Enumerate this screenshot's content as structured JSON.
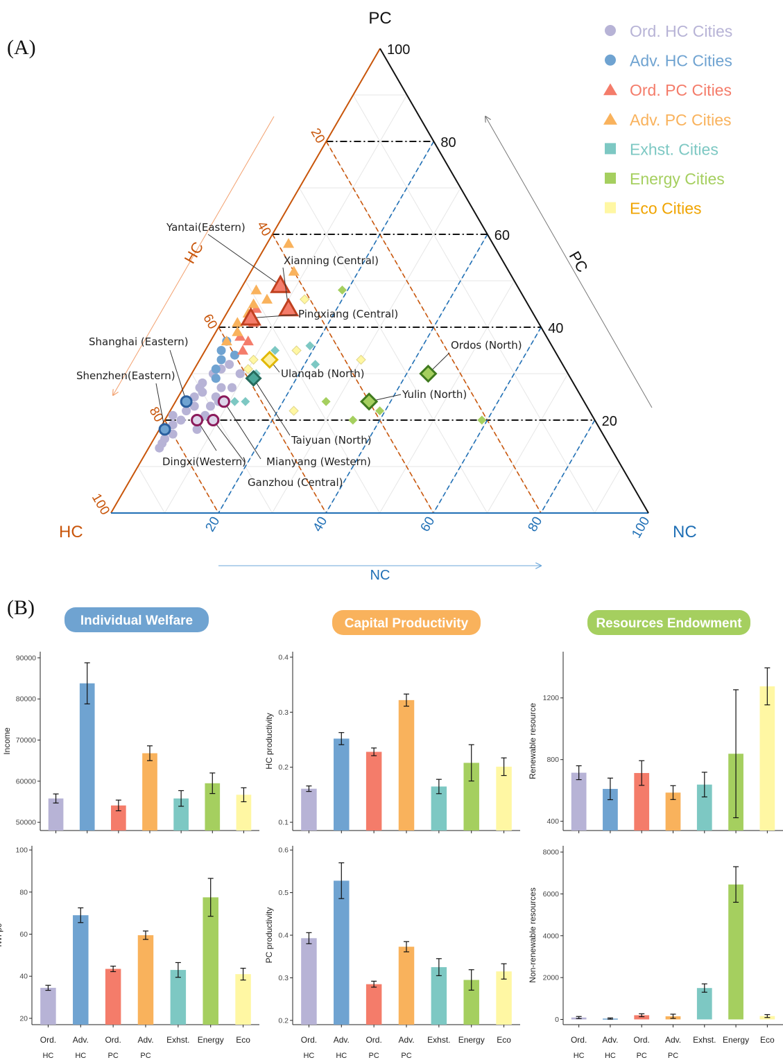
{
  "colors": {
    "ord_hc": "#b7b3d6",
    "adv_hc": "#6fa3d1",
    "ord_pc": "#f47c6a",
    "adv_pc": "#f9b25c",
    "exhst": "#7dc8c3",
    "energy": "#a5cf5f",
    "eco": "#fff7a3",
    "hc_axis": "#c8550a",
    "nc_axis": "#1f6fb5"
  },
  "panel_a": {
    "label": "(A)",
    "vertex_labels": {
      "pc": "PC",
      "hc": "HC",
      "nc": "NC"
    },
    "arrow_labels": {
      "pc": "PC",
      "hc": "HC",
      "nc": "NC"
    },
    "pc_ticks": [
      "20",
      "40",
      "60",
      "80",
      "100"
    ],
    "hc_ticks": [
      "20",
      "40",
      "60",
      "80",
      "100"
    ],
    "nc_ticks": [
      "20",
      "40",
      "60",
      "80",
      "100"
    ],
    "legend": [
      {
        "label": "Ord. HC Cities",
        "shape": "circle",
        "color_key": "ord_hc"
      },
      {
        "label": "Adv. HC Cities",
        "shape": "circle",
        "color_key": "adv_hc"
      },
      {
        "label": "Ord. PC Cities",
        "shape": "triangle",
        "color_key": "ord_pc"
      },
      {
        "label": "Adv. PC Cities",
        "shape": "triangle",
        "color_key": "adv_pc"
      },
      {
        "label": "Exhst. Cities",
        "shape": "square",
        "color_key": "exhst"
      },
      {
        "label": "Energy Cities",
        "shape": "square",
        "color_key": "energy"
      },
      {
        "label": "Eco Cities",
        "shape": "square",
        "color_key": "eco"
      }
    ],
    "annotations": [
      "Yantai(Eastern)",
      "Xianning (Central)",
      "Pingxiang (Central)",
      "Shanghai (Eastern)",
      "Shenzhen(Eastern)",
      "Ordos (North)",
      "Ulanqab (North)",
      "Yulin (North)",
      "Taiyuan (North)",
      "Dingxi(Western)",
      "Mianyang (Western)",
      "Ganzhou (Central)"
    ]
  },
  "panel_b": {
    "label": "(B)",
    "group_titles": [
      "Individual Welfare",
      "Capital Productivity",
      "Resources Endowment"
    ],
    "category_lines": [
      [
        "Ord.",
        "HC"
      ],
      [
        "Adv.",
        "HC"
      ],
      [
        "Ord.",
        "PC"
      ],
      [
        "Adv.",
        "PC"
      ],
      [
        "Exhst.",
        ""
      ],
      [
        "Energy",
        ""
      ],
      [
        "Eco",
        ""
      ]
    ]
  },
  "chart_data": [
    {
      "type": "scatter",
      "subtype": "ternary",
      "axes": [
        "PC",
        "HC",
        "NC"
      ],
      "range": [
        0,
        100
      ],
      "series": [
        {
          "name": "Ord. HC Cities",
          "points": [
            [
              30,
              66,
              4
            ],
            [
              28,
              69,
              3
            ],
            [
              27,
              70,
              3
            ],
            [
              25,
              72,
              3
            ],
            [
              24,
              74,
              2
            ],
            [
              22,
              75,
              3
            ],
            [
              21,
              78,
              1
            ],
            [
              19,
              79,
              2
            ],
            [
              18,
              81,
              1
            ],
            [
              16,
              82,
              2
            ],
            [
              23,
              73,
              4
            ],
            [
              26,
              70,
              4
            ],
            [
              29,
              66,
              5
            ],
            [
              31,
              64,
              5
            ],
            [
              20,
              77,
              3
            ],
            [
              17,
              80,
              3
            ],
            [
              15,
              83,
              2
            ],
            [
              14,
              84,
              2
            ],
            [
              32,
              62,
              6
            ],
            [
              27,
              66,
              7
            ],
            [
              25,
              68,
              7
            ],
            [
              23,
              70,
              7
            ],
            [
              21,
              72,
              7
            ],
            [
              30,
              61,
              9
            ],
            [
              27,
              64,
              9
            ],
            [
              24,
              68,
              8
            ],
            [
              18,
              75,
              7
            ]
          ]
        },
        {
          "name": "Adv. HC Cities",
          "points": [
            [
              37,
              60,
              3
            ],
            [
              35,
              62,
              3
            ],
            [
              33,
              63,
              4
            ],
            [
              31,
              65,
              4
            ],
            [
              29,
              66,
              5
            ],
            [
              34,
              60,
              6
            ],
            [
              24,
              74,
              2
            ],
            [
              18,
              81,
              1
            ]
          ]
        },
        {
          "name": "Ord. PC Cities",
          "points": [
            [
              49,
              44,
              7
            ],
            [
              44,
              45,
              11
            ],
            [
              42,
              53,
              5
            ],
            [
              38,
              57,
              5
            ],
            [
              37,
              56,
              7
            ],
            [
              35,
              58,
              7
            ],
            [
              44,
              51,
              5
            ],
            [
              41,
              53,
              6
            ]
          ]
        },
        {
          "name": "Adv. PC Cities",
          "points": [
            [
              58,
              38,
              4
            ],
            [
              52,
              40,
              8
            ],
            [
              48,
              49,
              3
            ],
            [
              45,
              51,
              4
            ],
            [
              43,
              53,
              4
            ],
            [
              41,
              56,
              3
            ],
            [
              39,
              57,
              4
            ],
            [
              37,
              60,
              3
            ],
            [
              46,
              48,
              6
            ]
          ]
        },
        {
          "name": "Exhst. Cities",
          "points": [
            [
              30,
              58,
              12
            ],
            [
              35,
              52,
              13
            ],
            [
              36,
              45,
              19
            ],
            [
              32,
              46,
              22
            ],
            [
              24,
              63,
              13
            ],
            [
              24,
              65,
              11
            ]
          ]
        },
        {
          "name": "Energy Cities",
          "points": [
            [
              30,
              26,
              44
            ],
            [
              24,
              48,
              28
            ],
            [
              24,
              40,
              36
            ],
            [
              22,
              39,
              39
            ],
            [
              20,
              45,
              35
            ],
            [
              20,
              71,
              9
            ],
            [
              48,
              33,
              19
            ],
            [
              20,
              21,
              59
            ]
          ]
        },
        {
          "name": "Eco Cities",
          "points": [
            [
              46,
              41,
              13
            ],
            [
              33,
              57,
              10
            ],
            [
              31,
              59,
              10
            ],
            [
              33,
              54,
              13
            ],
            [
              33,
              37,
              30
            ],
            [
              35,
              48,
              17
            ],
            [
              22,
              55,
              23
            ]
          ]
        }
      ],
      "highlighted": [
        {
          "label": "Yantai(Eastern)",
          "point": [
            49,
            44,
            7
          ]
        },
        {
          "label": "Xianning (Central)",
          "point": [
            44,
            45,
            11
          ]
        },
        {
          "label": "Pingxiang (Central)",
          "point": [
            42,
            53,
            5
          ]
        },
        {
          "label": "Shanghai (Eastern)",
          "point": [
            24,
            74,
            2
          ]
        },
        {
          "label": "Shenzhen(Eastern)",
          "point": [
            18,
            81,
            1
          ]
        },
        {
          "label": "Ordos (North)",
          "point": [
            30,
            26,
            44
          ]
        },
        {
          "label": "Ulanqab (North)",
          "point": [
            33,
            54,
            13
          ]
        },
        {
          "label": "Yulin (North)",
          "point": [
            24,
            40,
            36
          ]
        },
        {
          "label": "Taiyuan (North)",
          "point": [
            29,
            59,
            12
          ]
        },
        {
          "label": "Dingxi(Western)",
          "point": [
            20,
            74,
            6
          ]
        },
        {
          "label": "Mianyang (Western)",
          "point": [
            24,
            67,
            9
          ]
        },
        {
          "label": "Ganzhou (Central)",
          "point": [
            20,
            71,
            9
          ]
        }
      ]
    },
    {
      "type": "bar",
      "group": "Individual Welfare",
      "categories": [
        "Ord. HC",
        "Adv. HC",
        "Ord. PC",
        "Adv. PC",
        "Exhst.",
        "Energy",
        "Eco"
      ],
      "values": [
        55800,
        83800,
        54100,
        66800,
        55800,
        59500,
        56700
      ],
      "errors": [
        1100,
        5000,
        1300,
        1800,
        1900,
        2500,
        1700
      ],
      "ylabel": "Income",
      "ylim": [
        48000,
        91500
      ],
      "yticks": [
        50000,
        60000,
        70000,
        80000,
        90000
      ],
      "ytick_labels": [
        "50000",
        "60000",
        "70000",
        "80000",
        "90000"
      ]
    },
    {
      "type": "bar",
      "group": "Capital Productivity",
      "categories": [
        "Ord. HC",
        "Adv. HC",
        "Ord. PC",
        "Adv. PC",
        "Exhst.",
        "Energy",
        "Eco"
      ],
      "values": [
        0.161,
        0.252,
        0.228,
        0.322,
        0.165,
        0.208,
        0.201
      ],
      "errors": [
        0.005,
        0.011,
        0.007,
        0.011,
        0.013,
        0.033,
        0.016
      ],
      "ylabel": "HC productivity",
      "ylim": [
        0.085,
        0.41
      ],
      "yticks": [
        0.1,
        0.2,
        0.3,
        0.4
      ],
      "ytick_labels": [
        "0.1",
        "0.2",
        "0.3",
        "0.4"
      ]
    },
    {
      "type": "bar",
      "group": "Resources Endowment",
      "categories": [
        "Ord. HC",
        "Adv. HC",
        "Ord. PC",
        "Adv. PC",
        "Exhst.",
        "Energy",
        "Eco"
      ],
      "values": [
        715,
        610,
        713,
        586,
        638,
        838,
        1275
      ],
      "errors": [
        45,
        70,
        80,
        45,
        80,
        415,
        120
      ],
      "ylabel": "Renewable resource",
      "ylim": [
        340,
        1500
      ],
      "yticks": [
        400,
        800,
        1200
      ],
      "ytick_labels": [
        "400",
        "800",
        "1200"
      ]
    },
    {
      "type": "bar",
      "group": "Individual Welfare",
      "categories": [
        "Ord. HC",
        "Adv. HC",
        "Ord. PC",
        "Adv. PC",
        "Exhst.",
        "Energy",
        "Eco"
      ],
      "values": [
        34.5,
        69.0,
        43.5,
        59.5,
        43.0,
        77.5,
        41.0
      ],
      "errors": [
        1.2,
        3.5,
        1.3,
        2.0,
        3.5,
        9.0,
        2.8
      ],
      "ylabel": "IWI pc",
      "ylim": [
        17,
        102
      ],
      "yticks": [
        20,
        40,
        60,
        80,
        100
      ],
      "ytick_labels": [
        "20",
        "40",
        "60",
        "80",
        "100"
      ]
    },
    {
      "type": "bar",
      "group": "Capital Productivity",
      "categories": [
        "Ord. HC",
        "Adv. HC",
        "Ord. PC",
        "Adv. PC",
        "Exhst.",
        "Energy",
        "Eco"
      ],
      "values": [
        0.393,
        0.528,
        0.285,
        0.373,
        0.325,
        0.295,
        0.315
      ],
      "errors": [
        0.013,
        0.042,
        0.007,
        0.012,
        0.02,
        0.024,
        0.018
      ],
      "ylabel": "PC productivity",
      "ylim": [
        0.19,
        0.61
      ],
      "yticks": [
        0.2,
        0.3,
        0.4,
        0.5,
        0.6
      ],
      "ytick_labels": [
        "0.2",
        "0.3",
        "0.4",
        "0.5",
        "0.6"
      ]
    },
    {
      "type": "bar",
      "group": "Resources Endowment",
      "categories": [
        "Ord. HC",
        "Adv. HC",
        "Ord. PC",
        "Adv. PC",
        "Exhst.",
        "Energy",
        "Eco"
      ],
      "values": [
        90,
        40,
        200,
        150,
        1500,
        6450,
        160
      ],
      "errors": [
        50,
        30,
        70,
        100,
        200,
        850,
        70
      ],
      "ylabel": "Non-renewable resources",
      "ylim": [
        -250,
        8300
      ],
      "yticks": [
        0,
        2000,
        4000,
        6000,
        8000
      ],
      "ytick_labels": [
        "0",
        "2000",
        "4000",
        "6000",
        "8000"
      ]
    }
  ]
}
